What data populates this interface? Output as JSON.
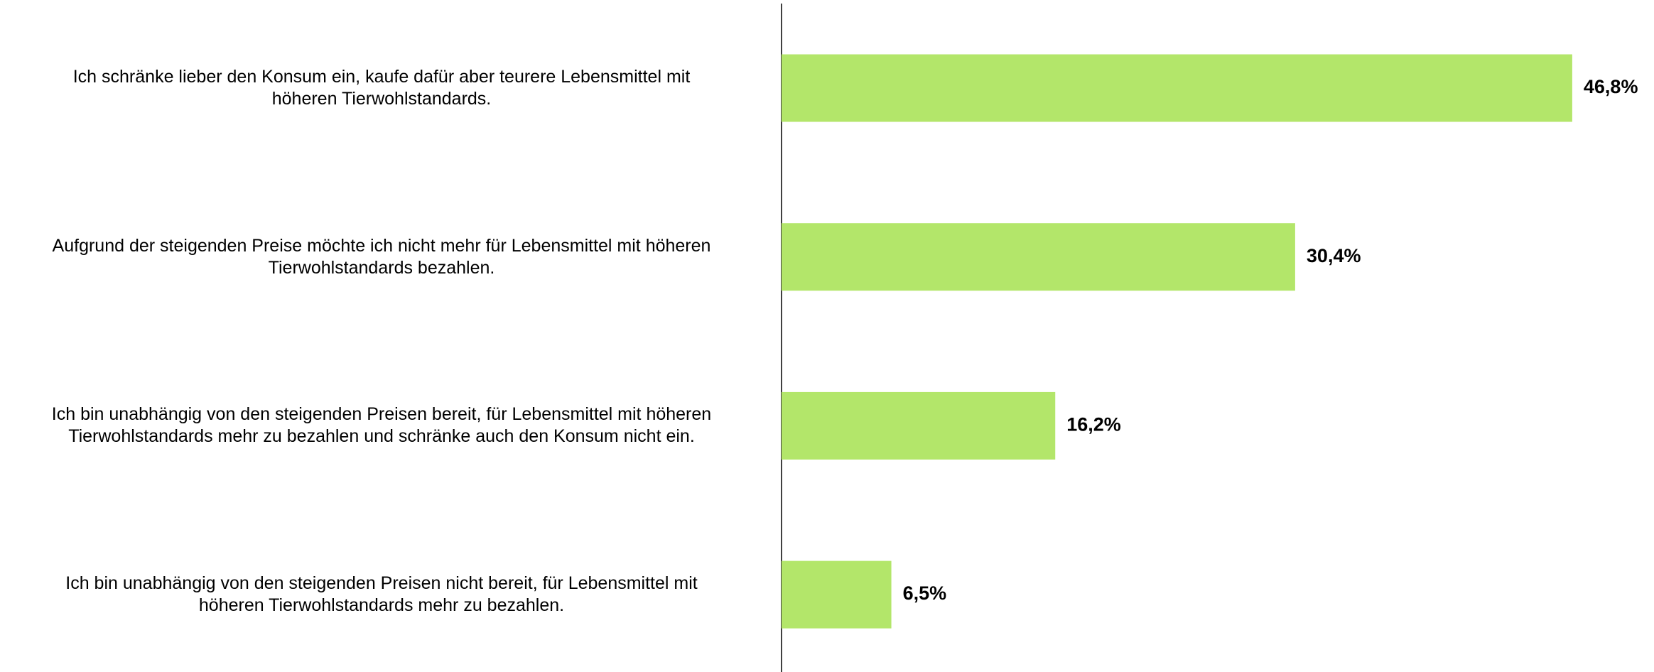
{
  "chart_data": {
    "type": "bar",
    "orientation": "horizontal",
    "categories": [
      "Ich schränke lieber den Konsum ein, kaufe dafür aber teurere Lebensmittel mit\nhöheren Tierwohlstandards.",
      "Aufgrund der steigenden Preise möchte ich nicht mehr für Lebensmittel mit höheren\nTierwohlstandards bezahlen.",
      "Ich bin unabhängig von den steigenden Preisen bereit, für Lebensmittel mit höheren\nTierwohlstandards mehr zu bezahlen und schränke auch den Konsum nicht ein.",
      "Ich bin unabhängig von den steigenden Preisen nicht bereit, für Lebensmittel mit\nhöheren Tierwohlstandards mehr zu bezahlen."
    ],
    "values": [
      46.8,
      30.4,
      16.2,
      6.5
    ],
    "value_labels": [
      "46,8%",
      "30,4%",
      "16,2%",
      "6,5%"
    ],
    "color": "#b3e66a",
    "xlim": [
      0,
      50
    ]
  }
}
